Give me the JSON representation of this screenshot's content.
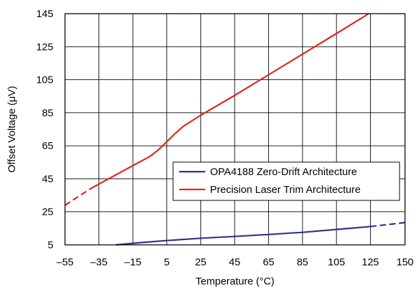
{
  "chart_data": {
    "type": "line",
    "xlabel": "Temperature (°C)",
    "ylabel": "Offset Voltage (μV)",
    "xlim": [
      -55,
      150
    ],
    "ylim": [
      5,
      145
    ],
    "x_ticks": [
      -55,
      -35,
      -15,
      5,
      25,
      45,
      65,
      85,
      105,
      125,
      150
    ],
    "x_tick_labels": [
      "–55",
      "–35",
      "–15",
      "5",
      "25",
      "45",
      "65",
      "85",
      "105",
      "125",
      "150"
    ],
    "y_ticks": [
      5,
      25,
      45,
      65,
      85,
      105,
      125,
      145
    ],
    "y_tick_labels": [
      "5",
      "25",
      "45",
      "65",
      "85",
      "105",
      "125",
      "145"
    ],
    "grid": true,
    "legend_position": "center-right",
    "series": [
      {
        "name": "OPA4188 Zero-Drift Architecture",
        "color": "#2b2f8f",
        "solid": [
          [
            -25,
            5
          ],
          [
            -10,
            6.4
          ],
          [
            5,
            7.6
          ],
          [
            25,
            9.0
          ],
          [
            45,
            10.1
          ],
          [
            65,
            11.3
          ],
          [
            85,
            12.6
          ],
          [
            105,
            14.3
          ],
          [
            125,
            16.1
          ]
        ],
        "dashed": [
          [
            125,
            16.1
          ],
          [
            150,
            18.5
          ]
        ]
      },
      {
        "name": "Precision Laser Trim Architecture",
        "color": "#e2231a",
        "dashed": [
          [
            -55,
            29
          ],
          [
            -40,
            39
          ]
        ],
        "solid": [
          [
            -40,
            39
          ],
          [
            -15,
            53
          ],
          [
            -5,
            58.5
          ],
          [
            0,
            62.5
          ],
          [
            5,
            67.5
          ],
          [
            10,
            72.5
          ],
          [
            15,
            77
          ],
          [
            25,
            83.5
          ],
          [
            45,
            95.5
          ],
          [
            65,
            108
          ],
          [
            85,
            120.5
          ],
          [
            105,
            133
          ],
          [
            124,
            145
          ]
        ]
      }
    ]
  }
}
